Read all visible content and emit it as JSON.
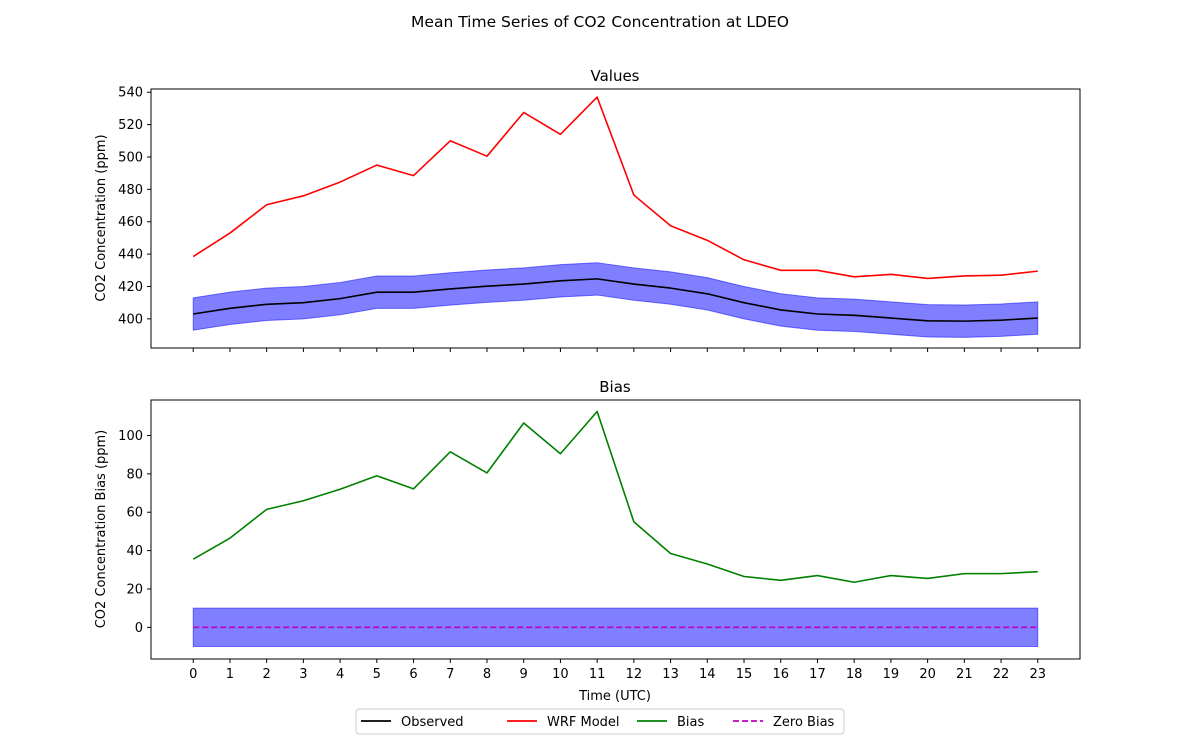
{
  "figure": {
    "suptitle": "Mean Time Series of CO2 Concentration at LDEO"
  },
  "chart_data": [
    {
      "type": "line",
      "title": "Values",
      "xlabel": "",
      "ylabel": "CO2 Concentration (ppm)",
      "x": [
        0,
        1,
        2,
        3,
        4,
        5,
        6,
        7,
        8,
        9,
        10,
        11,
        12,
        13,
        14,
        15,
        16,
        17,
        18,
        19,
        20,
        21,
        22,
        23
      ],
      "xlim": [
        -1.15,
        24.15
      ],
      "ylim": [
        382,
        542
      ],
      "yticks": [
        400,
        420,
        440,
        460,
        480,
        500,
        520,
        540
      ],
      "show_x_ticklabels": false,
      "grid": false,
      "series": [
        {
          "name": "WRF Model",
          "color": "#ff0000",
          "values": [
            438.5,
            453,
            470.5,
            476,
            484.5,
            495,
            488.5,
            510,
            500.5,
            527.5,
            514,
            537,
            476.5,
            457.5,
            448.5,
            436.5,
            430,
            430,
            426,
            427.5,
            425,
            426.5,
            427,
            429.5
          ]
        },
        {
          "name": "Observed",
          "color": "#000000",
          "band_color": "#0000ff",
          "band_halfwidth": 10,
          "values": [
            403,
            406.5,
            409,
            410,
            412.5,
            416.5,
            416.5,
            418.5,
            420.2,
            421.5,
            423.5,
            424.7,
            421.5,
            419,
            415.5,
            410,
            405.5,
            403,
            402.2,
            400.5,
            398.8,
            398.6,
            399.2,
            400.5
          ]
        }
      ]
    },
    {
      "type": "line",
      "title": "Bias",
      "xlabel": "Time (UTC)",
      "ylabel": "CO2 Concentration Bias (ppm)",
      "x": [
        0,
        1,
        2,
        3,
        4,
        5,
        6,
        7,
        8,
        9,
        10,
        11,
        12,
        13,
        14,
        15,
        16,
        17,
        18,
        19,
        20,
        21,
        22,
        23
      ],
      "xlim": [
        -1.15,
        24.15
      ],
      "ylim": [
        -16.5,
        118.5
      ],
      "yticks": [
        0,
        20,
        40,
        60,
        80,
        100
      ],
      "xticks": [
        0,
        1,
        2,
        3,
        4,
        5,
        6,
        7,
        8,
        9,
        10,
        11,
        12,
        13,
        14,
        15,
        16,
        17,
        18,
        19,
        20,
        21,
        22,
        23
      ],
      "grid": false,
      "series": [
        {
          "name": "Bias",
          "color": "#008000",
          "values": [
            35.5,
            46.5,
            61.5,
            66,
            72,
            79,
            72.2,
            91.5,
            80.5,
            106.5,
            90.5,
            112.5,
            55,
            38.5,
            33,
            26.5,
            24.5,
            27,
            23.5,
            27,
            25.5,
            28,
            28,
            29
          ]
        },
        {
          "name": "Zero Bias",
          "color": "#bf00bf",
          "dashed": true,
          "band_color": "#0000ff",
          "band_halfwidth": 10,
          "values": [
            0,
            0,
            0,
            0,
            0,
            0,
            0,
            0,
            0,
            0,
            0,
            0,
            0,
            0,
            0,
            0,
            0,
            0,
            0,
            0,
            0,
            0,
            0,
            0
          ]
        }
      ]
    }
  ],
  "legend": {
    "placement": "bottom-center",
    "items": [
      {
        "label": "Observed",
        "color": "#000000",
        "dashed": false
      },
      {
        "label": "WRF Model",
        "color": "#ff0000",
        "dashed": false
      },
      {
        "label": "Bias",
        "color": "#008000",
        "dashed": false
      },
      {
        "label": "Zero Bias",
        "color": "#bf00bf",
        "dashed": true
      }
    ]
  }
}
